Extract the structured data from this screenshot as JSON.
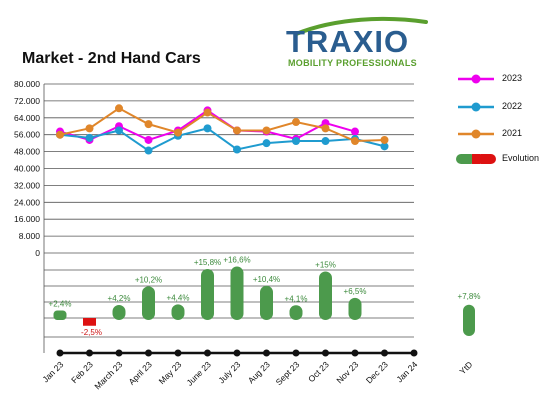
{
  "title": "Market - 2nd Hand Cars",
  "logo": {
    "name": "TRAXIO",
    "tagline": "MOBILITY PROFESSIONALS"
  },
  "colors": {
    "s2023": "#ee00ee",
    "s2022": "#1f9bcf",
    "s2021": "#e0862a",
    "evolution_positive": "#4c9a4c",
    "evolution_negative": "#dd1111",
    "brand_blue": "#2a5d8f",
    "brand_green": "#5a9f2e"
  },
  "legend": [
    {
      "label": "2023",
      "color": "#ee00ee",
      "kind": "line"
    },
    {
      "label": "2022",
      "color": "#1f9bcf",
      "kind": "line"
    },
    {
      "label": "2021",
      "color": "#e0862a",
      "kind": "line"
    },
    {
      "label": "Evolution",
      "color": "#4c9a4c",
      "kind": "bar"
    }
  ],
  "chart_data": {
    "type": "line",
    "title": "Market - 2nd Hand Cars",
    "categories": [
      "Jan 23",
      "Feb 23",
      "March 23",
      "April 23",
      "May 23",
      "June 23",
      "July 23",
      "Aug 23",
      "Sept 23",
      "Oct 23",
      "Nov 23",
      "Dec 23",
      "Jan 24"
    ],
    "y_ticks": [
      "80.000",
      "72.000",
      "64.000",
      "56.000",
      "48.000",
      "40.000",
      "32.000",
      "24.000",
      "16.000",
      "8.000",
      "0"
    ],
    "ylim": [
      0,
      80000
    ],
    "series": [
      {
        "name": "2023",
        "color": "#ee00ee",
        "values": [
          57500,
          53500,
          60000,
          53500,
          58000,
          67500,
          58000,
          57500,
          54000,
          61500,
          57500,
          null,
          null
        ]
      },
      {
        "name": "2022",
        "color": "#1f9bcf",
        "values": [
          56000,
          54500,
          58000,
          48500,
          55500,
          59000,
          49000,
          52000,
          53000,
          53000,
          54000,
          50500,
          null
        ]
      },
      {
        "name": "2021",
        "color": "#e0862a",
        "values": [
          56000,
          59000,
          68500,
          61000,
          57000,
          66500,
          58000,
          58000,
          62000,
          59000,
          53000,
          53500,
          null
        ]
      }
    ],
    "evolution": {
      "name": "Evolution",
      "labels": [
        "+2,4%",
        "-2,5%",
        "+4,2%",
        "+10,2%",
        "+4,4%",
        "+15,8%",
        "+16,6%",
        "+10,4%",
        "+4,1%",
        "+15%",
        "+6,5%",
        null,
        null
      ],
      "values": [
        2.4,
        -2.5,
        4.2,
        10.2,
        4.4,
        15.8,
        16.6,
        10.4,
        4.1,
        15.0,
        6.5,
        null,
        null
      ],
      "ytd_label": "YtD",
      "ytd_text": "+7,8%",
      "ytd_value": 7.8
    },
    "grid": true,
    "legend_position": "right"
  }
}
